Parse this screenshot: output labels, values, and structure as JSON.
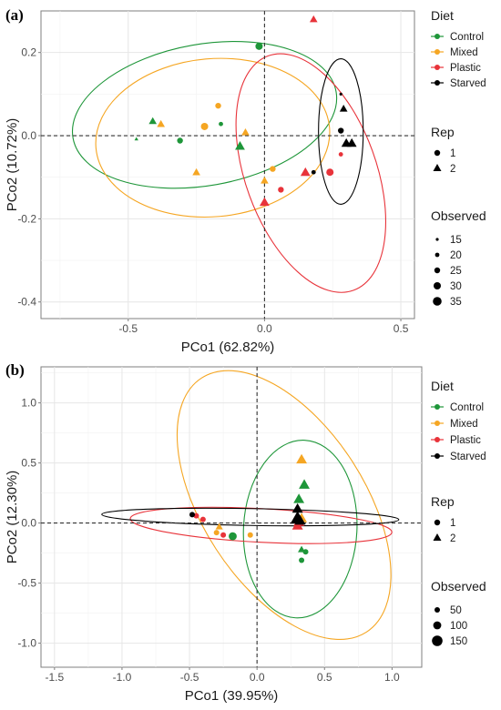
{
  "chart_data": [
    {
      "panel": "(a)",
      "type": "scatter",
      "xlabel": "PCo1 (62.82%)",
      "ylabel": "PCo2 (10.72%)",
      "xlim": [
        -0.82,
        0.55
      ],
      "ylim": [
        -0.44,
        0.3
      ],
      "xticks": [
        -0.5,
        0.0,
        0.5
      ],
      "xtick_labels": [
        "-0.5",
        "0.0",
        "0.5"
      ],
      "yticks": [
        0.2,
        0.0,
        -0.2,
        -0.4
      ],
      "ytick_labels": [
        "0.2",
        "0.0",
        "-0.2",
        "-0.4"
      ],
      "grid": true,
      "reference_lines": {
        "x": 0,
        "y": 0,
        "style": "dashed"
      },
      "series": [
        {
          "name": "Control",
          "color": "#1e9639",
          "ellipse": {
            "cx": -0.22,
            "cy": 0.05,
            "rx": 0.49,
            "ry": 0.17,
            "angle_deg": 10
          },
          "points": [
            {
              "x": -0.02,
              "y": 0.215,
              "shape": "circle",
              "observed": 30
            },
            {
              "x": -0.31,
              "y": -0.012,
              "shape": "circle",
              "observed": 25
            },
            {
              "x": -0.16,
              "y": 0.028,
              "shape": "circle",
              "observed": 20
            },
            {
              "x": -0.41,
              "y": 0.035,
              "shape": "triangle",
              "observed": 25
            },
            {
              "x": -0.47,
              "y": -0.008,
              "shape": "triangle",
              "observed": 15
            },
            {
              "x": -0.09,
              "y": -0.025,
              "shape": "triangle",
              "observed": 30
            }
          ]
        },
        {
          "name": "Mixed",
          "color": "#f5a623",
          "ellipse": {
            "cx": -0.19,
            "cy": -0.005,
            "rx": 0.43,
            "ry": 0.19,
            "angle_deg": 5
          },
          "points": [
            {
              "x": -0.17,
              "y": 0.072,
              "shape": "circle",
              "observed": 25
            },
            {
              "x": -0.22,
              "y": 0.022,
              "shape": "circle",
              "observed": 30
            },
            {
              "x": 0.03,
              "y": -0.08,
              "shape": "circle",
              "observed": 25
            },
            {
              "x": -0.38,
              "y": 0.028,
              "shape": "triangle",
              "observed": 25
            },
            {
              "x": -0.07,
              "y": 0.008,
              "shape": "triangle",
              "observed": 25
            },
            {
              "x": -0.25,
              "y": -0.088,
              "shape": "triangle",
              "observed": 25
            },
            {
              "x": 0.0,
              "y": -0.108,
              "shape": "triangle",
              "observed": 25
            }
          ]
        },
        {
          "name": "Plastic",
          "color": "#e8333a",
          "ellipse": {
            "cx": 0.17,
            "cy": -0.09,
            "rx": 0.24,
            "ry": 0.3,
            "angle_deg": 20
          },
          "points": [
            {
              "x": 0.06,
              "y": -0.13,
              "shape": "circle",
              "observed": 25
            },
            {
              "x": 0.24,
              "y": -0.088,
              "shape": "circle",
              "observed": 30
            },
            {
              "x": 0.28,
              "y": -0.045,
              "shape": "circle",
              "observed": 20
            },
            {
              "x": 0.18,
              "y": 0.28,
              "shape": "triangle",
              "observed": 25
            },
            {
              "x": 0.0,
              "y": -0.16,
              "shape": "triangle",
              "observed": 30
            },
            {
              "x": 0.15,
              "y": -0.088,
              "shape": "triangle",
              "observed": 30
            }
          ]
        },
        {
          "name": "Starved",
          "color": "#000000",
          "ellipse": {
            "cx": 0.28,
            "cy": 0.01,
            "rx": 0.082,
            "ry": 0.175,
            "angle_deg": 0
          },
          "points": [
            {
              "x": 0.28,
              "y": 0.1,
              "shape": "circle",
              "observed": 15
            },
            {
              "x": 0.28,
              "y": 0.012,
              "shape": "circle",
              "observed": 25
            },
            {
              "x": 0.18,
              "y": -0.088,
              "shape": "circle",
              "observed": 20
            },
            {
              "x": 0.29,
              "y": 0.065,
              "shape": "triangle",
              "observed": 25
            },
            {
              "x": 0.3,
              "y": -0.018,
              "shape": "triangle",
              "observed": 30
            },
            {
              "x": 0.32,
              "y": -0.018,
              "shape": "triangle",
              "observed": 30
            }
          ]
        }
      ]
    },
    {
      "panel": "(b)",
      "type": "scatter",
      "xlabel": "PCo1 (39.95%)",
      "ylabel": "PCo2 (12.30%)",
      "xlim": [
        -1.6,
        1.22
      ],
      "ylim": [
        -1.2,
        1.3
      ],
      "xticks": [
        -1.5,
        -1.0,
        -0.5,
        0.0,
        0.5,
        1.0
      ],
      "xtick_labels": [
        "-1.5",
        "-1.0",
        "-0.5",
        "0.0",
        "0.5",
        "1.0"
      ],
      "yticks": [
        1.0,
        0.5,
        0.0,
        -0.5,
        -1.0
      ],
      "ytick_labels": [
        "1.0",
        "0.5",
        "0.0",
        "-0.5",
        "-1.0"
      ],
      "grid": true,
      "reference_lines": {
        "x": 0,
        "y": 0,
        "style": "dashed"
      },
      "series": [
        {
          "name": "Control",
          "color": "#1e9639",
          "ellipse": {
            "cx": 0.32,
            "cy": -0.05,
            "rx": 0.42,
            "ry": 0.74,
            "angle_deg": -3
          },
          "points": [
            {
              "x": -0.18,
              "y": -0.11,
              "shape": "circle",
              "observed": 100
            },
            {
              "x": 0.33,
              "y": -0.31,
              "shape": "circle",
              "observed": 50
            },
            {
              "x": 0.36,
              "y": -0.24,
              "shape": "circle",
              "observed": 50
            },
            {
              "x": 0.35,
              "y": 0.32,
              "shape": "triangle",
              "observed": 100
            },
            {
              "x": 0.31,
              "y": 0.2,
              "shape": "triangle",
              "observed": 100
            },
            {
              "x": 0.33,
              "y": -0.22,
              "shape": "triangle",
              "observed": 50
            }
          ]
        },
        {
          "name": "Mixed",
          "color": "#f5a623",
          "ellipse": {
            "cx": 0.2,
            "cy": 0.15,
            "rx": 0.6,
            "ry": 1.26,
            "angle_deg": 33
          },
          "points": [
            {
              "x": -0.05,
              "y": -0.1,
              "shape": "circle",
              "observed": 50
            },
            {
              "x": -0.3,
              "y": -0.08,
              "shape": "circle",
              "observed": 50
            },
            {
              "x": 0.33,
              "y": 0.53,
              "shape": "triangle",
              "observed": 100
            },
            {
              "x": 0.33,
              "y": 0.04,
              "shape": "triangle",
              "observed": 100
            },
            {
              "x": -0.28,
              "y": -0.03,
              "shape": "triangle",
              "observed": 50
            }
          ]
        },
        {
          "name": "Plastic",
          "color": "#e8333a",
          "ellipse": {
            "cx": 0.03,
            "cy": -0.02,
            "rx": 0.97,
            "ry": 0.14,
            "angle_deg": -3
          },
          "points": [
            {
              "x": -0.4,
              "y": 0.03,
              "shape": "circle",
              "observed": 50
            },
            {
              "x": -0.25,
              "y": -0.1,
              "shape": "circle",
              "observed": 50
            },
            {
              "x": -0.45,
              "y": 0.06,
              "shape": "circle",
              "observed": 50
            },
            {
              "x": 0.3,
              "y": -0.02,
              "shape": "triangle",
              "observed": 100
            },
            {
              "x": 0.31,
              "y": 0.01,
              "shape": "triangle",
              "observed": 100
            }
          ]
        },
        {
          "name": "Starved",
          "color": "#000000",
          "ellipse": {
            "cx": -0.05,
            "cy": 0.05,
            "rx": 1.1,
            "ry": 0.07,
            "angle_deg": -1
          },
          "points": [
            {
              "x": -0.48,
              "y": 0.07,
              "shape": "circle",
              "observed": 50
            },
            {
              "x": 0.3,
              "y": 0.12,
              "shape": "triangle",
              "observed": 100
            },
            {
              "x": 0.3,
              "y": 0.04,
              "shape": "triangle",
              "observed": 150
            },
            {
              "x": 0.32,
              "y": 0.02,
              "shape": "triangle",
              "observed": 100
            }
          ]
        }
      ]
    }
  ],
  "legends": [
    {
      "diet_title": "Diet",
      "diet_items": [
        {
          "label": "Control",
          "color": "#1e9639"
        },
        {
          "label": "Mixed",
          "color": "#f5a623"
        },
        {
          "label": "Plastic",
          "color": "#e8333a"
        },
        {
          "label": "Starved",
          "color": "#000000"
        }
      ],
      "rep_title": "Rep",
      "rep_items": [
        {
          "label": "1",
          "shape": "circle"
        },
        {
          "label": "2",
          "shape": "triangle"
        }
      ],
      "observed_title": "Observed",
      "observed_items": [
        {
          "label": "15",
          "value": 15
        },
        {
          "label": "20",
          "value": 20
        },
        {
          "label": "25",
          "value": 25
        },
        {
          "label": "30",
          "value": 30
        },
        {
          "label": "35",
          "value": 35
        }
      ]
    },
    {
      "diet_title": "Diet",
      "diet_items": [
        {
          "label": "Control",
          "color": "#1e9639"
        },
        {
          "label": "Mixed",
          "color": "#f5a623"
        },
        {
          "label": "Plastic",
          "color": "#e8333a"
        },
        {
          "label": "Starved",
          "color": "#000000"
        }
      ],
      "rep_title": "Rep",
      "rep_items": [
        {
          "label": "1",
          "shape": "circle"
        },
        {
          "label": "2",
          "shape": "triangle"
        }
      ],
      "observed_title": "Observed",
      "observed_items": [
        {
          "label": "50",
          "value": 50
        },
        {
          "label": "100",
          "value": 100
        },
        {
          "label": "150",
          "value": 150
        }
      ]
    }
  ]
}
